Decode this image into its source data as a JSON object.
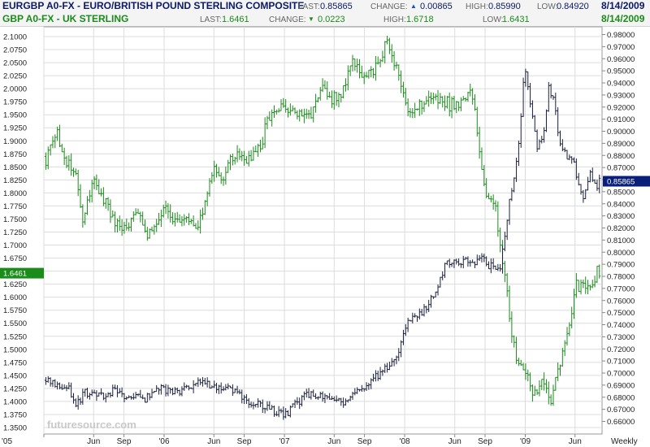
{
  "header": {
    "row1": {
      "title": "EURGBP A0-FX - EURO/BRITISH POUND STERLING COMPOSITE",
      "last_label": "LAST:",
      "last": "0.85865",
      "change_label": "CHANGE:",
      "change": "0.00865",
      "high_label": "HIGH:",
      "high": "0.85990",
      "low_label": "LOW:",
      "low": "0.84920",
      "date": "8/14/2009"
    },
    "row2": {
      "title": "GBP A0-FX - UK STERLING",
      "last_label": "LAST:",
      "last": "1.6461",
      "change_label": "CHANGE:",
      "change": "0.0223",
      "high_label": "HIGH:",
      "high": "1.6718",
      "low_label": "LOW:",
      "low": "1.6431",
      "date": "8/14/2009"
    }
  },
  "colors": {
    "eurgbp": "#1a1f3d",
    "gbp": "#1a8c1a",
    "grid": "#dcdcdc",
    "header_bg": "#f4f4f4",
    "eurgbp_tag": "#0a1f7a",
    "gbp_tag": "#1a8c1a",
    "change_up_arrow": "#1a4fbf",
    "change_down_arrow": "#1a8c1a"
  },
  "watermark": "futuresource.com",
  "chart_data": {
    "type": "ohlc",
    "frequency": "Weekly",
    "grid": true,
    "x_ticks": [
      "'05",
      "Jun",
      "Sep",
      "'06",
      "Jun",
      "Sep",
      "'07",
      "Jun",
      "Sep",
      "'08",
      "Jun",
      "Sep",
      "'09",
      "Jun",
      "Weekly"
    ],
    "x_tick_dates": [
      "2005-01",
      "2005-06",
      "2005-09",
      "2006-01",
      "2006-06",
      "2006-09",
      "2007-01",
      "2007-06",
      "2007-09",
      "2008-01",
      "2008-06",
      "2008-09",
      "2009-01",
      "2009-06"
    ],
    "left_axis": {
      "series": "GBP A0-FX",
      "ylim": [
        1.35,
        2.1
      ],
      "ticks": [
        "2.1000",
        "2.0750",
        "2.0500",
        "2.0250",
        "2.0000",
        "1.9750",
        "1.9500",
        "1.9250",
        "1.9000",
        "1.8750",
        "1.8500",
        "1.8250",
        "1.8000",
        "1.7750",
        "1.7500",
        "1.7250",
        "1.7000",
        "1.6750",
        "1.6500",
        "1.6250",
        "1.6000",
        "1.5750",
        "1.5500",
        "1.5250",
        "1.5000",
        "1.4750",
        "1.4500",
        "1.4250",
        "1.4000",
        "1.3750",
        "1.3500"
      ],
      "last_tag": "1.6461"
    },
    "right_axis": {
      "series": "EURGBP A0-FX",
      "ylim": [
        0.655,
        0.985
      ],
      "ticks": [
        "0.98000",
        "0.97000",
        "0.96000",
        "0.95000",
        "0.94000",
        "0.93000",
        "0.92000",
        "0.91000",
        "0.90000",
        "0.89000",
        "0.88000",
        "0.87000",
        "0.86000",
        "0.85000",
        "0.84000",
        "0.83000",
        "0.82000",
        "0.81000",
        "0.80000",
        "0.79000",
        "0.78000",
        "0.77000",
        "0.76000",
        "0.75000",
        "0.74000",
        "0.73000",
        "0.72000",
        "0.71000",
        "0.70000",
        "0.69000",
        "0.68000",
        "0.67000",
        "0.66000"
      ],
      "last_tag": "0.85865"
    },
    "series": [
      {
        "name": "GBP A0-FX - UK STERLING",
        "axis": "left",
        "anchors": [
          [
            "2005-01-07",
            1.87
          ],
          [
            "2005-02-10",
            1.91
          ],
          [
            "2005-03-10",
            1.86
          ],
          [
            "2005-04-10",
            1.83
          ],
          [
            "2005-04-28",
            1.74
          ],
          [
            "2005-06-01",
            1.82
          ],
          [
            "2005-06-24",
            1.8
          ],
          [
            "2005-07-22",
            1.76
          ],
          [
            "2005-08-20",
            1.73
          ],
          [
            "2005-09-15",
            1.74
          ],
          [
            "2005-10-15",
            1.77
          ],
          [
            "2005-11-15",
            1.72
          ],
          [
            "2005-12-05",
            1.74
          ],
          [
            "2006-01-05",
            1.78
          ],
          [
            "2006-02-05",
            1.74
          ],
          [
            "2006-03-15",
            1.75
          ],
          [
            "2006-04-05",
            1.73
          ],
          [
            "2006-05-05",
            1.78
          ],
          [
            "2006-06-01",
            1.86
          ],
          [
            "2006-06-25",
            1.82
          ],
          [
            "2006-07-25",
            1.87
          ],
          [
            "2006-08-25",
            1.86
          ],
          [
            "2006-09-15",
            1.87
          ],
          [
            "2006-10-15",
            1.88
          ],
          [
            "2006-11-15",
            1.95
          ],
          [
            "2006-12-15",
            1.96
          ],
          [
            "2007-01-15",
            1.96
          ],
          [
            "2007-02-25",
            1.94
          ],
          [
            "2007-04-05",
            1.97
          ],
          [
            "2007-04-25",
            2.0
          ],
          [
            "2007-05-25",
            1.98
          ],
          [
            "2007-06-25",
            1.99
          ],
          [
            "2007-07-25",
            2.05
          ],
          [
            "2007-08-25",
            2.02
          ],
          [
            "2007-10-01",
            2.03
          ],
          [
            "2007-11-08",
            2.09
          ],
          [
            "2007-12-05",
            2.04
          ],
          [
            "2008-01-05",
            1.97
          ],
          [
            "2008-02-05",
            1.96
          ],
          [
            "2008-03-05",
            1.98
          ],
          [
            "2008-04-05",
            1.98
          ],
          [
            "2008-05-05",
            1.97
          ],
          [
            "2008-06-05",
            1.97
          ],
          [
            "2008-07-05",
            1.98
          ],
          [
            "2008-07-20",
            2.0
          ],
          [
            "2008-08-10",
            1.91
          ],
          [
            "2008-09-05",
            1.79
          ],
          [
            "2008-10-01",
            1.78
          ],
          [
            "2008-10-25",
            1.66
          ],
          [
            "2008-11-20",
            1.53
          ],
          [
            "2008-12-10",
            1.48
          ],
          [
            "2009-01-10",
            1.46
          ],
          [
            "2009-01-25",
            1.4
          ],
          [
            "2009-02-20",
            1.45
          ],
          [
            "2009-03-20",
            1.4
          ],
          [
            "2009-04-15",
            1.47
          ],
          [
            "2009-05-15",
            1.55
          ],
          [
            "2009-06-05",
            1.62
          ],
          [
            "2009-07-15",
            1.63
          ],
          [
            "2009-08-14",
            1.65
          ]
        ]
      },
      {
        "name": "EURGBP A0-FX - EURO/BRITISH POUND STERLING COMPOSITE",
        "axis": "right",
        "anchors": [
          [
            "2005-01-07",
            0.694
          ],
          [
            "2005-02-25",
            0.688
          ],
          [
            "2005-03-20",
            0.686
          ],
          [
            "2005-04-10",
            0.672
          ],
          [
            "2005-05-05",
            0.685
          ],
          [
            "2005-06-05",
            0.68
          ],
          [
            "2005-07-05",
            0.683
          ],
          [
            "2005-08-05",
            0.686
          ],
          [
            "2005-09-05",
            0.68
          ],
          [
            "2005-10-05",
            0.681
          ],
          [
            "2005-11-05",
            0.68
          ],
          [
            "2005-12-05",
            0.686
          ],
          [
            "2006-01-05",
            0.687
          ],
          [
            "2006-02-05",
            0.685
          ],
          [
            "2006-03-05",
            0.688
          ],
          [
            "2006-04-05",
            0.69
          ],
          [
            "2006-05-05",
            0.692
          ],
          [
            "2006-06-05",
            0.686
          ],
          [
            "2006-07-05",
            0.69
          ],
          [
            "2006-08-05",
            0.684
          ],
          [
            "2006-09-05",
            0.677
          ],
          [
            "2006-10-05",
            0.674
          ],
          [
            "2006-11-05",
            0.672
          ],
          [
            "2006-12-05",
            0.668
          ],
          [
            "2007-01-05",
            0.666
          ],
          [
            "2007-02-05",
            0.674
          ],
          [
            "2007-03-05",
            0.681
          ],
          [
            "2007-04-05",
            0.682
          ],
          [
            "2007-05-05",
            0.678
          ],
          [
            "2007-06-05",
            0.679
          ],
          [
            "2007-07-05",
            0.675
          ],
          [
            "2007-08-05",
            0.683
          ],
          [
            "2007-09-05",
            0.69
          ],
          [
            "2007-10-05",
            0.696
          ],
          [
            "2007-11-05",
            0.702
          ],
          [
            "2007-12-05",
            0.712
          ],
          [
            "2008-01-05",
            0.74
          ],
          [
            "2008-02-05",
            0.748
          ],
          [
            "2008-03-05",
            0.752
          ],
          [
            "2008-04-05",
            0.768
          ],
          [
            "2008-05-05",
            0.79
          ],
          [
            "2008-06-05",
            0.79
          ],
          [
            "2008-07-05",
            0.792
          ],
          [
            "2008-08-05",
            0.792
          ],
          [
            "2008-08-25",
            0.795
          ],
          [
            "2008-09-20",
            0.788
          ],
          [
            "2008-10-15",
            0.786
          ],
          [
            "2008-11-10",
            0.835
          ],
          [
            "2008-12-10",
            0.88
          ],
          [
            "2008-12-30",
            0.957
          ],
          [
            "2009-01-12",
            0.93
          ],
          [
            "2009-02-05",
            0.888
          ],
          [
            "2009-02-25",
            0.895
          ],
          [
            "2009-03-12",
            0.935
          ],
          [
            "2009-03-30",
            0.925
          ],
          [
            "2009-04-15",
            0.89
          ],
          [
            "2009-05-05",
            0.878
          ],
          [
            "2009-05-25",
            0.88
          ],
          [
            "2009-06-10",
            0.856
          ],
          [
            "2009-06-25",
            0.845
          ],
          [
            "2009-07-15",
            0.863
          ],
          [
            "2009-08-05",
            0.852
          ],
          [
            "2009-08-14",
            0.859
          ]
        ]
      }
    ]
  }
}
